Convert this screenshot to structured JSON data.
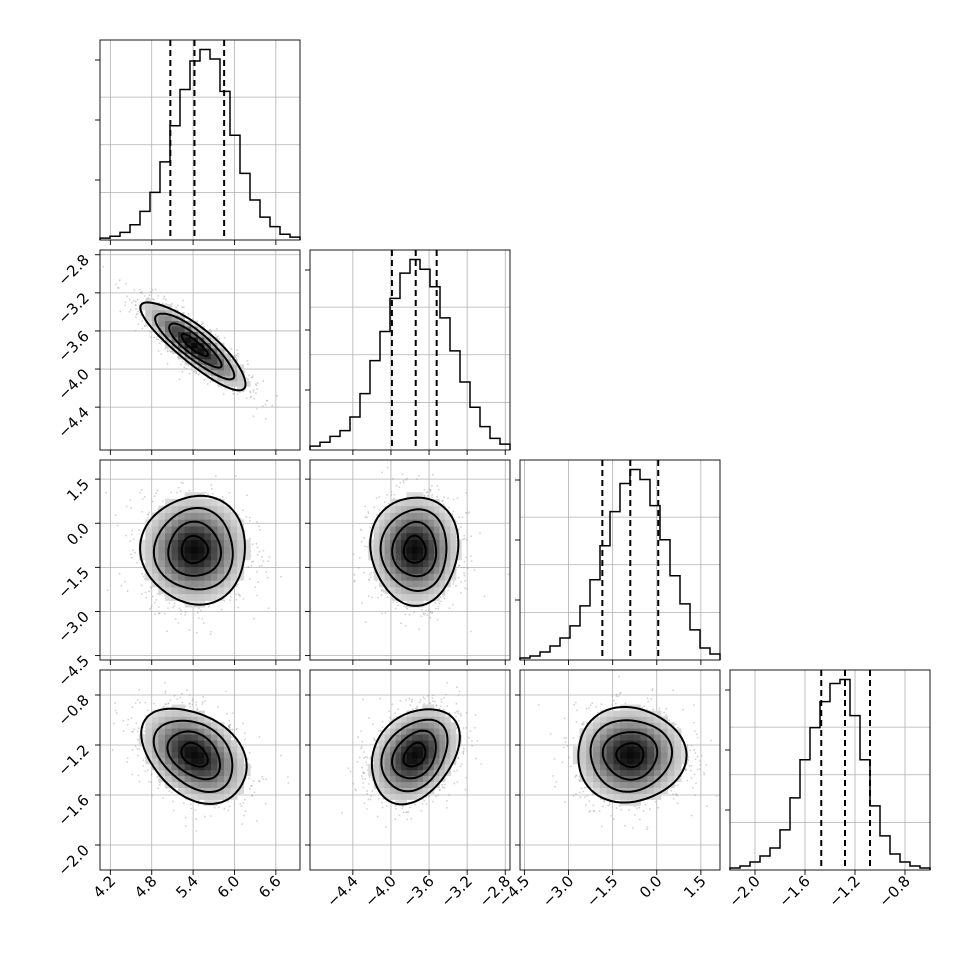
{
  "chart_data": {
    "type": "corner",
    "title": "",
    "parameters": [
      {
        "label": "",
        "range": [
          4.05,
          6.95
        ],
        "ticks": [
          4.2,
          4.8,
          5.4,
          6.0,
          6.6
        ],
        "tick_labels": [
          "4.2",
          "4.8",
          "5.4",
          "6.0",
          "6.6"
        ],
        "quantiles": [
          5.07,
          5.42,
          5.85
        ],
        "mean": 5.42,
        "sd": 0.38,
        "histogram": [
          0.01,
          0.02,
          0.04,
          0.08,
          0.15,
          0.25,
          0.41,
          0.6,
          0.79,
          0.94,
          1.0,
          0.95,
          0.78,
          0.55,
          0.35,
          0.21,
          0.12,
          0.07,
          0.03,
          0.015
        ]
      },
      {
        "label": "",
        "range": [
          -4.85,
          -2.75
        ],
        "ticks": [
          -4.4,
          -4.0,
          -3.6,
          -3.2,
          -2.8
        ],
        "tick_labels": [
          "−4.4",
          "−4.0",
          "−3.6",
          "−3.2",
          "−2.8"
        ],
        "quantiles": [
          -3.99,
          -3.74,
          -3.52
        ],
        "mean": -3.75,
        "sd": 0.23,
        "histogram": [
          0.02,
          0.04,
          0.07,
          0.1,
          0.17,
          0.29,
          0.46,
          0.61,
          0.78,
          0.91,
          0.98,
          0.93,
          0.84,
          0.68,
          0.51,
          0.35,
          0.22,
          0.12,
          0.06,
          0.03
        ]
      },
      {
        "label": "",
        "range": [
          -4.65,
          2.15
        ],
        "ticks": [
          -4.5,
          -3.0,
          -1.5,
          0.0,
          1.5
        ],
        "tick_labels": [
          "−4.5",
          "−3.0",
          "−1.5",
          "0.0",
          "1.5"
        ],
        "quantiles": [
          -1.85,
          -0.9,
          0.05
        ],
        "mean": -0.9,
        "sd": 0.92,
        "histogram": [
          0.01,
          0.02,
          0.04,
          0.07,
          0.11,
          0.17,
          0.27,
          0.4,
          0.57,
          0.74,
          0.88,
          0.95,
          0.9,
          0.77,
          0.6,
          0.42,
          0.28,
          0.15,
          0.06,
          0.03
        ]
      },
      {
        "label": "",
        "range": [
          -2.2,
          -0.6
        ],
        "ticks": [
          -2.0,
          -1.6,
          -1.2,
          -0.8
        ],
        "tick_labels": [
          "−2.0",
          "−1.6",
          "−1.2",
          "−0.8"
        ],
        "quantiles": [
          -1.47,
          -1.28,
          -1.08
        ],
        "mean": -1.28,
        "sd": 0.19,
        "histogram": [
          0.01,
          0.02,
          0.04,
          0.07,
          0.11,
          0.2,
          0.36,
          0.55,
          0.71,
          0.84,
          0.93,
          0.95,
          0.77,
          0.55,
          0.32,
          0.17,
          0.08,
          0.04,
          0.02,
          0.01
        ]
      }
    ],
    "correlations": [
      {
        "x": 0,
        "y": 1,
        "rho": -0.86
      },
      {
        "x": 0,
        "y": 2,
        "rho": 0.0
      },
      {
        "x": 1,
        "y": 2,
        "rho": 0.0
      },
      {
        "x": 0,
        "y": 3,
        "rho": -0.35
      },
      {
        "x": 1,
        "y": 3,
        "rho": 0.3
      },
      {
        "x": 2,
        "y": 3,
        "rho": 0.0
      }
    ],
    "contour_levels_sigma": [
      0.5,
      1.0,
      1.5,
      2.0
    ],
    "grid": true,
    "quantile_lines": "dashed"
  }
}
